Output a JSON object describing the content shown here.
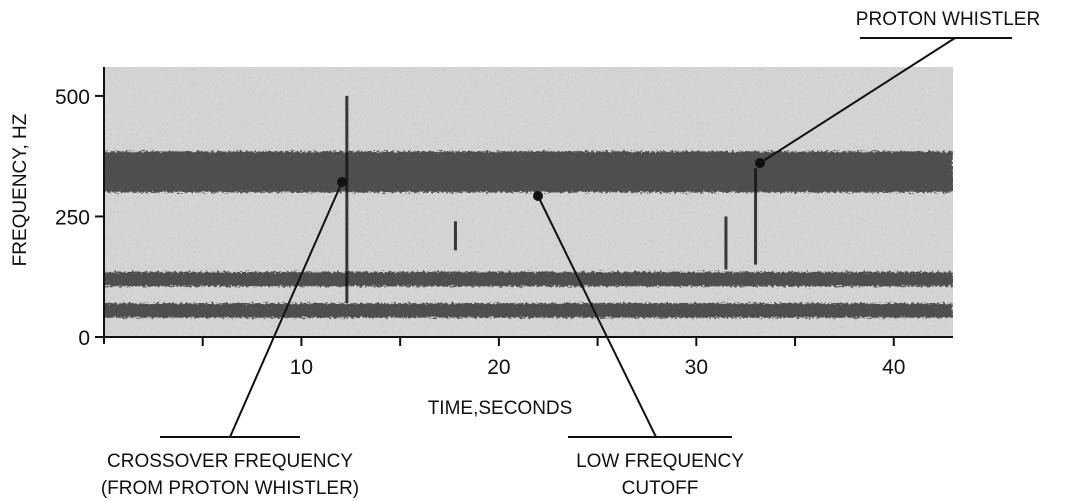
{
  "chart_data": {
    "type": "spectrogram",
    "xlabel": "TIME,SECONDS",
    "ylabel": "FREQUENCY, HZ",
    "xlim": [
      0,
      43
    ],
    "ylim": [
      0,
      560
    ],
    "x_ticks": [
      5,
      10,
      15,
      20,
      25,
      30,
      35,
      40
    ],
    "x_tick_labels": [
      "10",
      "20",
      "30",
      "40"
    ],
    "x_tick_label_values": [
      10,
      20,
      30,
      40
    ],
    "y_ticks": [
      0,
      250,
      500
    ],
    "y_tick_labels": [
      "0",
      "250",
      "500"
    ],
    "bands": [
      {
        "f_low": 300,
        "f_high": 385
      },
      {
        "f_low": 105,
        "f_high": 135
      },
      {
        "f_low": 40,
        "f_high": 70
      }
    ],
    "streaks": [
      {
        "t": 12.3,
        "f_low": 70,
        "f_high": 500
      },
      {
        "t": 17.8,
        "f_low": 180,
        "f_high": 240
      },
      {
        "t": 31.5,
        "f_low": 140,
        "f_high": 250
      },
      {
        "t": 33.0,
        "f_low": 150,
        "f_high": 350
      }
    ],
    "annotations": [
      {
        "lines": [
          "PROTON WHISTLER"
        ],
        "target_t": 33.0,
        "target_f": 355
      },
      {
        "lines": [
          "CROSSOVER FREQUENCY",
          "(FROM PROTON WHISTLER)"
        ],
        "target_t": 12.3,
        "target_f": 330
      },
      {
        "lines": [
          "LOW FREQUENCY",
          "CUTOFF"
        ],
        "target_t": 22.0,
        "target_f": 300
      }
    ]
  }
}
